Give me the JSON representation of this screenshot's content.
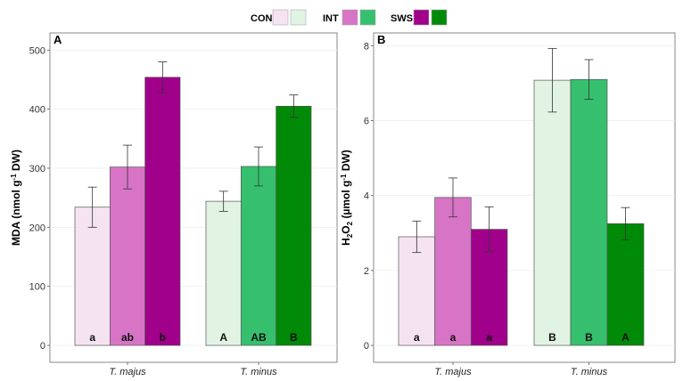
{
  "legend": {
    "entries": [
      {
        "label": "CON",
        "colors": [
          "#f6e3f1",
          "#e1f3e3"
        ]
      },
      {
        "label": "INT",
        "colors": [
          "#d774c5",
          "#36c06e"
        ]
      },
      {
        "label": "SWS",
        "colors": [
          "#a0008a",
          "#008a07"
        ]
      }
    ]
  },
  "chart_data": [
    {
      "type": "bar",
      "panel_label": "A",
      "ylabel_main": "MDA (nmol g",
      "ylabel_sup": "-1",
      "ylabel_tail": " DW)",
      "ylim": [
        0,
        520
      ],
      "yticks": [
        0,
        100,
        200,
        300,
        400,
        500
      ],
      "yticklabels": [
        "0",
        "100",
        "200",
        "300",
        "400",
        "500"
      ],
      "categories": [
        "T. majus",
        "T. minus"
      ],
      "series": [
        {
          "name": "CON",
          "values": [
            234,
            244
          ],
          "errors": [
            34,
            17
          ],
          "labels": [
            "a",
            "A"
          ],
          "colors": [
            "#f6e3f1",
            "#e1f3e3"
          ]
        },
        {
          "name": "INT",
          "values": [
            302,
            303
          ],
          "errors": [
            37,
            33
          ],
          "labels": [
            "ab",
            "AB"
          ],
          "colors": [
            "#d774c5",
            "#36c06e"
          ]
        },
        {
          "name": "SWS",
          "values": [
            454,
            405
          ],
          "errors": [
            26,
            19
          ],
          "labels": [
            "b",
            "B"
          ],
          "colors": [
            "#a0008a",
            "#008a07"
          ]
        }
      ]
    },
    {
      "type": "bar",
      "panel_label": "B",
      "ylabel_main": "H",
      "ylabel_sub": "2",
      "ylabel_mid": "O",
      "ylabel_sub2": "2",
      "ylabel_tail": " (µmol g",
      "ylabel_sup": "-1",
      "ylabel_end": " DW)",
      "ylim": [
        0,
        8.2
      ],
      "yticks": [
        0,
        2,
        4,
        6,
        8
      ],
      "yticklabels": [
        "0",
        "2",
        "4",
        "6",
        "8"
      ],
      "categories": [
        "T. majus",
        "T. minus"
      ],
      "series": [
        {
          "name": "CON",
          "values": [
            2.9,
            7.08
          ],
          "errors": [
            0.42,
            0.85
          ],
          "labels": [
            "a",
            "B"
          ],
          "colors": [
            "#f6e3f1",
            "#e1f3e3"
          ]
        },
        {
          "name": "INT",
          "values": [
            3.95,
            7.1
          ],
          "errors": [
            0.52,
            0.53
          ],
          "labels": [
            "a",
            "B"
          ],
          "colors": [
            "#d774c5",
            "#36c06e"
          ]
        },
        {
          "name": "SWS",
          "values": [
            3.1,
            3.25
          ],
          "errors": [
            0.6,
            0.43
          ],
          "labels": [
            "a",
            "A"
          ],
          "colors": [
            "#a0008a",
            "#008a07"
          ]
        }
      ]
    }
  ]
}
